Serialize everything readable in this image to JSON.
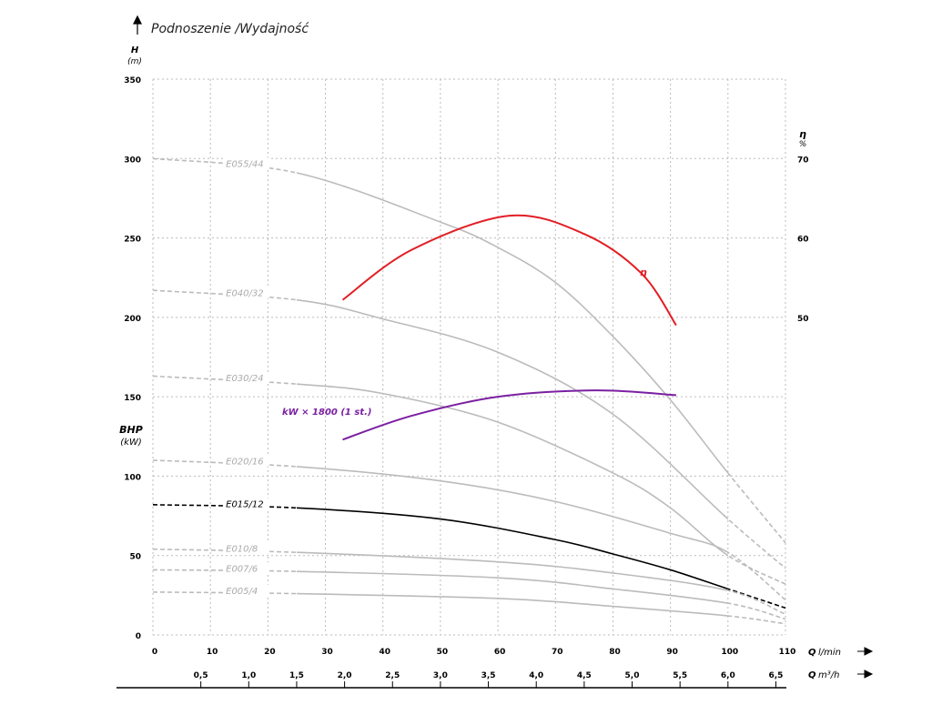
{
  "chart_data": {
    "type": "line",
    "title": "Podnoszenie /Wydajność",
    "ylabel": "H",
    "ylabel_unit": "(m)",
    "y2label": "η",
    "y2label_unit": "%",
    "bhp_label": "BHP",
    "bhp_unit": "(kW)",
    "xlabel_q": "Q",
    "xlabel_unit": "l/min",
    "x2label_q": "Q",
    "x2label_unit": "m³/h",
    "xlim": [
      0,
      110
    ],
    "ylim": [
      0,
      350
    ],
    "y2lim": [
      10,
      80
    ],
    "x_ticks": [
      "0",
      "10",
      "20",
      "30",
      "40",
      "50",
      "60",
      "70",
      "80",
      "90",
      "100",
      "110"
    ],
    "x2_ticks": [
      "0,5",
      "1,0",
      "1,5",
      "2,0",
      "2,5",
      "3,0",
      "3,5",
      "4,0",
      "4,5",
      "5,0",
      "5,5",
      "6,0",
      "6,5"
    ],
    "y_ticks": [
      "0",
      "50",
      "100",
      "150",
      "200",
      "250",
      "300",
      "350"
    ],
    "y2_ticks": [
      "50",
      "60",
      "70"
    ],
    "grid": true,
    "series": [
      {
        "name": "E055/44",
        "color": "#bbbbbb",
        "x": [
          0,
          25,
          50,
          60,
          70,
          80,
          90,
          100,
          110
        ],
        "y": [
          300,
          291,
          260,
          244,
          222,
          188,
          148,
          102,
          58
        ]
      },
      {
        "name": "E040/32",
        "color": "#bbbbbb",
        "x": [
          0,
          25,
          40,
          60,
          80,
          100,
          110
        ],
        "y": [
          217,
          211,
          199,
          178,
          139,
          73,
          42
        ]
      },
      {
        "name": "E030/24",
        "color": "#bbbbbb",
        "x": [
          0,
          25,
          40,
          60,
          80,
          90,
          100,
          110
        ],
        "y": [
          163,
          158,
          152,
          134,
          102,
          80,
          50,
          32
        ]
      },
      {
        "name": "E020/16",
        "color": "#bbbbbb",
        "x": [
          0,
          25,
          50,
          70,
          90,
          100,
          110
        ],
        "y": [
          110,
          106,
          97,
          84,
          64,
          52,
          22
        ]
      },
      {
        "name": "E015/12",
        "color": "#000000",
        "x": [
          0,
          25,
          50,
          70,
          80,
          90,
          100,
          110
        ],
        "y": [
          82,
          80,
          73,
          60,
          51,
          41,
          29,
          17
        ]
      },
      {
        "name": "E010/8",
        "color": "#bbbbbb",
        "x": [
          0,
          25,
          60,
          80,
          100,
          110
        ],
        "y": [
          54,
          52,
          46,
          39,
          28,
          13
        ]
      },
      {
        "name": "E007/6",
        "color": "#bbbbbb",
        "x": [
          0,
          25,
          60,
          80,
          100,
          110
        ],
        "y": [
          41,
          40,
          36,
          29,
          20,
          10
        ]
      },
      {
        "name": "E005/4",
        "color": "#bbbbbb",
        "x": [
          0,
          25,
          60,
          80,
          100,
          110
        ],
        "y": [
          27,
          26,
          23,
          18,
          12,
          7
        ]
      }
    ],
    "efficiency": {
      "name": "η",
      "color": "#e31e24",
      "x": [
        33,
        45,
        62,
        75,
        85,
        91
      ],
      "y2": [
        52.2,
        58.5,
        62.8,
        60.5,
        55.5,
        49
      ]
    },
    "power": {
      "name": "kW × 1800 (1 st.)",
      "color": "#7b1fa2",
      "x": [
        33,
        45,
        60,
        77,
        91
      ],
      "y": [
        123,
        138,
        150,
        154,
        151
      ]
    }
  }
}
